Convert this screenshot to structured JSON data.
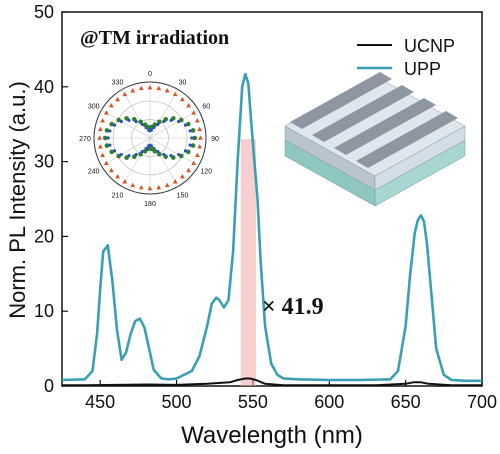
{
  "chart_data": {
    "type": "line",
    "xlabel": "Wavelength (nm)",
    "ylabel": "Norm. PL Intensity (a.u.)",
    "xlim": [
      425,
      700
    ],
    "ylim": [
      0,
      50
    ],
    "x_ticks": [
      "450",
      "500",
      "550",
      "600",
      "650",
      "700"
    ],
    "y_ticks": [
      "0",
      "10",
      "20",
      "30",
      "40",
      "50"
    ],
    "annotation_title": "@TM irradiation",
    "enhancement_label": "× 41.9",
    "legend": {
      "placement": "top-right",
      "items": [
        "UCNP",
        "UPP"
      ]
    },
    "series": [
      {
        "name": "UCNP",
        "color": "#111111",
        "x": [
          425,
          440,
          460,
          480,
          500,
          520,
          535,
          540,
          545,
          548,
          552,
          558,
          570,
          600,
          630,
          650,
          655,
          660,
          665,
          680,
          700
        ],
        "y": [
          0.1,
          0.1,
          0.15,
          0.2,
          0.15,
          0.3,
          0.5,
          0.8,
          1.0,
          1.0,
          0.8,
          0.3,
          0.1,
          0.1,
          0.1,
          0.3,
          0.5,
          0.5,
          0.3,
          0.1,
          0.1
        ]
      },
      {
        "name": "UPP",
        "color": "#3a9fb5",
        "x": [
          425,
          440,
          445,
          448,
          450,
          452,
          455,
          458,
          461,
          464,
          467,
          470,
          473,
          476,
          479,
          482,
          485,
          490,
          495,
          500,
          510,
          515,
          520,
          523,
          526,
          528,
          531,
          534,
          537,
          540,
          543,
          545,
          547,
          549,
          551,
          553,
          555,
          558,
          562,
          566,
          570,
          580,
          600,
          620,
          640,
          645,
          650,
          653,
          656,
          658,
          660,
          662,
          664,
          667,
          670,
          675,
          680,
          690,
          700
        ],
        "y": [
          0.8,
          0.9,
          2.0,
          7.0,
          13.0,
          18.0,
          18.8,
          14.0,
          7.5,
          3.5,
          4.5,
          7.0,
          8.7,
          9.0,
          7.8,
          5.0,
          2.2,
          1.0,
          0.9,
          1.0,
          2.0,
          4.0,
          8.0,
          11.0,
          11.8,
          11.5,
          10.5,
          11.5,
          18.0,
          30.0,
          40.0,
          41.7,
          40.5,
          35.0,
          30.0,
          25.0,
          17.0,
          8.0,
          3.0,
          1.5,
          1.0,
          0.9,
          0.8,
          0.8,
          0.9,
          2.0,
          8.0,
          15.0,
          20.5,
          22.2,
          22.8,
          22.0,
          19.0,
          12.0,
          5.0,
          1.5,
          0.8,
          0.7,
          0.7
        ]
      }
    ],
    "highlight_band": {
      "x_range": [
        542,
        552
      ],
      "y_top": 33,
      "color": "#f2a7a7"
    },
    "inset_polar": {
      "angle_labels": [
        "0",
        "30",
        "60",
        "90",
        "120",
        "150",
        "180",
        "210",
        "240",
        "270",
        "300",
        "330"
      ],
      "series_colors": [
        "#d9532a",
        "#2f7f2f",
        "#2a4fc2"
      ]
    },
    "inset_structure": {
      "colors": {
        "top_layer": "#9aa3ad",
        "middle": "#c7d3dc",
        "substrate": "#8fc6c0"
      }
    }
  }
}
